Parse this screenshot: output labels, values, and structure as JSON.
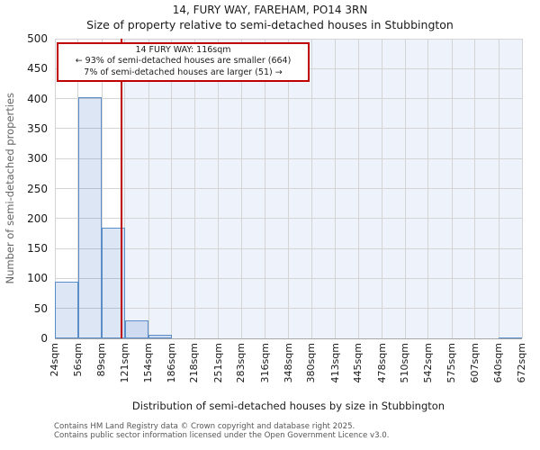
{
  "title": "14, FURY WAY, FAREHAM, PO14 3RN",
  "subtitle": "Size of property relative to semi-detached houses in Stubbington",
  "annotation": {
    "line1": "14 FURY WAY: 116sqm",
    "line2": "← 93% of semi-detached houses are smaller (664)",
    "line3": "7% of semi-detached houses are larger (51) →"
  },
  "footer": {
    "line1": "Contains HM Land Registry data © Crown copyright and database right 2025.",
    "line2": "Contains public sector information licensed under the Open Government Licence v3.0."
  },
  "chart_data": {
    "type": "bar",
    "title": "14, FURY WAY, FAREHAM, PO14 3RN",
    "subtitle": "Size of property relative to semi-detached houses in Stubbington",
    "xlabel": "Distribution of semi-detached houses by size in Stubbington",
    "ylabel": "Number of semi-detached properties",
    "bin_edges": [
      24,
      56,
      89,
      121,
      154,
      186,
      218,
      251,
      283,
      316,
      348,
      380,
      413,
      445,
      478,
      510,
      542,
      575,
      607,
      640,
      672
    ],
    "x_tick_labels": [
      "24sqm",
      "56sqm",
      "89sqm",
      "121sqm",
      "154sqm",
      "186sqm",
      "218sqm",
      "251sqm",
      "283sqm",
      "316sqm",
      "348sqm",
      "380sqm",
      "413sqm",
      "445sqm",
      "478sqm",
      "510sqm",
      "542sqm",
      "575sqm",
      "607sqm",
      "640sqm",
      "672sqm"
    ],
    "counts": [
      95,
      402,
      185,
      30,
      6,
      0,
      0,
      0,
      0,
      0,
      0,
      0,
      0,
      0,
      0,
      0,
      0,
      0,
      0,
      2
    ],
    "yticks": [
      0,
      50,
      100,
      150,
      200,
      250,
      300,
      350,
      400,
      450,
      500
    ],
    "ylim": [
      0,
      500
    ],
    "xlim": [
      24,
      672
    ],
    "grid": true,
    "legend": null,
    "marker_value": 116,
    "smaller_count": 664,
    "smaller_pct": 93,
    "larger_count": 51,
    "larger_pct": 7,
    "colors": {
      "bar_fill": "rgba(68,114,196,0.18)",
      "bar_edge": "#5b8dc8",
      "marker_line": "#c00000",
      "annotation_border": "#c00000",
      "span_fill": "#edf2fb",
      "grid": "#d4d4d4"
    }
  }
}
